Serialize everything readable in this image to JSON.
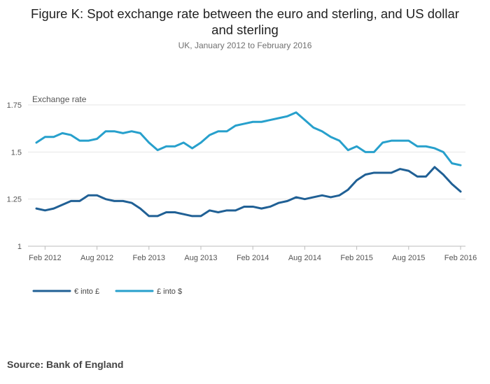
{
  "chart_data": {
    "type": "line",
    "title": "Figure K: Spot exchange rate between the euro and sterling, and US dollar and sterling",
    "title_lines": [
      "Figure K: Spot exchange rate between the euro and sterling, and US dollar",
      "and sterling"
    ],
    "subtitle": "UK, January 2012 to February 2016",
    "xlabel": "",
    "ylabel": "Exchange rate",
    "ylim": [
      1,
      1.75
    ],
    "yticks": [
      1,
      1.25,
      1.5,
      1.75
    ],
    "ytick_labels": [
      "1",
      "1.25",
      "1.5",
      "1.75"
    ],
    "xtick_labels": [
      "Feb 2012",
      "Aug 2012",
      "Feb 2013",
      "Aug 2013",
      "Feb 2014",
      "Aug 2014",
      "Feb 2015",
      "Aug 2015",
      "Feb 2016"
    ],
    "xtick_indices": [
      1,
      7,
      13,
      19,
      25,
      31,
      37,
      43,
      49
    ],
    "x_start": "Jan 2012",
    "n_points": 50,
    "grid": true,
    "legend_position": "bottom-left",
    "series": [
      {
        "name": "€ into £",
        "color": "#206095",
        "values": [
          1.2,
          1.19,
          1.2,
          1.22,
          1.24,
          1.24,
          1.27,
          1.27,
          1.25,
          1.24,
          1.24,
          1.23,
          1.2,
          1.16,
          1.16,
          1.18,
          1.18,
          1.17,
          1.16,
          1.16,
          1.19,
          1.18,
          1.19,
          1.19,
          1.21,
          1.21,
          1.2,
          1.21,
          1.23,
          1.24,
          1.26,
          1.25,
          1.26,
          1.27,
          1.26,
          1.27,
          1.3,
          1.35,
          1.38,
          1.39,
          1.39,
          1.39,
          1.41,
          1.4,
          1.37,
          1.37,
          1.42,
          1.38,
          1.33,
          1.29
        ]
      },
      {
        "name": "£ into $",
        "color": "#27a0cc",
        "values": [
          1.55,
          1.58,
          1.58,
          1.6,
          1.59,
          1.56,
          1.56,
          1.57,
          1.61,
          1.61,
          1.6,
          1.61,
          1.6,
          1.55,
          1.51,
          1.53,
          1.53,
          1.55,
          1.52,
          1.55,
          1.59,
          1.61,
          1.61,
          1.64,
          1.65,
          1.66,
          1.66,
          1.67,
          1.68,
          1.69,
          1.71,
          1.67,
          1.63,
          1.61,
          1.58,
          1.56,
          1.51,
          1.53,
          1.5,
          1.5,
          1.55,
          1.56,
          1.56,
          1.56,
          1.53,
          1.53,
          1.52,
          1.5,
          1.44,
          1.43
        ]
      }
    ]
  },
  "footer": {
    "source": "Source: Bank of England"
  }
}
